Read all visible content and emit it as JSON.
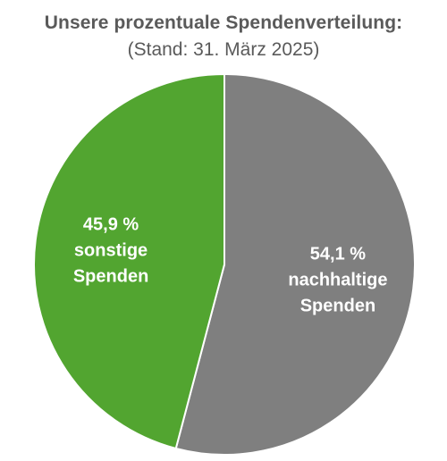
{
  "chart_data": {
    "type": "pie",
    "title": "Unsere prozentuale Spendenverteilung:",
    "subtitle": "(Stand: 31. März 2025)",
    "start": "12 o'clock, clockwise",
    "slices": [
      {
        "value": 54.1,
        "color": "#7f7f7f",
        "label_lines": [
          "54,1 %",
          "nachhaltige",
          "Spenden"
        ]
      },
      {
        "value": 45.9,
        "color": "#52a530",
        "label_lines": [
          "45,9 %",
          "sonstige",
          "Spenden"
        ]
      }
    ]
  }
}
